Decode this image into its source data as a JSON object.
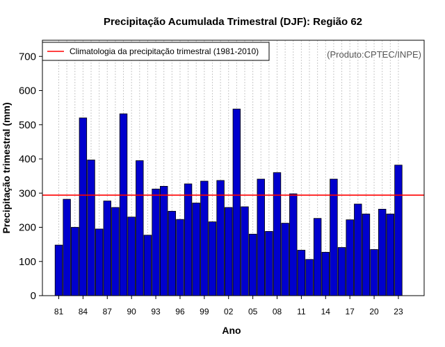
{
  "chart_data": {
    "type": "bar",
    "title": "Precipitação Acumulada Trimestral (DJF): Região 62",
    "xlabel": "Ano",
    "ylabel": "Precipitação trimestral (mm)",
    "source_note": "(Produto:CPTEC/INPE)",
    "legend": {
      "label": "Climatologia da precipitação trimestral (1981-2010)",
      "placement": "top-left"
    },
    "ylim": [
      0,
      750
    ],
    "yticks": [
      0,
      100,
      200,
      300,
      400,
      500,
      600,
      700
    ],
    "climatology": 294,
    "categories": [
      "81",
      "82",
      "83",
      "84",
      "85",
      "86",
      "87",
      "88",
      "89",
      "90",
      "91",
      "92",
      "93",
      "94",
      "95",
      "96",
      "97",
      "98",
      "99",
      "00",
      "01",
      "02",
      "03",
      "04",
      "05",
      "06",
      "07",
      "08",
      "09",
      "10",
      "11",
      "12",
      "13",
      "14",
      "15",
      "16",
      "17",
      "18",
      "19",
      "20",
      "21",
      "22",
      "23"
    ],
    "xtick_labels": [
      "81",
      "84",
      "87",
      "90",
      "93",
      "96",
      "99",
      "02",
      "05",
      "08",
      "11",
      "14",
      "17",
      "20",
      "23"
    ],
    "values": [
      148,
      282,
      200,
      520,
      397,
      195,
      277,
      258,
      532,
      230,
      395,
      177,
      312,
      320,
      247,
      223,
      327,
      271,
      335,
      216,
      337,
      258,
      546,
      260,
      180,
      341,
      188,
      360,
      212,
      298,
      133,
      106,
      226,
      127,
      341,
      141,
      222,
      268,
      239,
      135,
      253,
      239,
      382
    ],
    "colors": {
      "bar_fill": "#0000cd",
      "bar_stroke": "#000000",
      "climatology_line": "#ff0000",
      "grid": "#c8c8c8"
    },
    "grid": "vertical dotted"
  }
}
